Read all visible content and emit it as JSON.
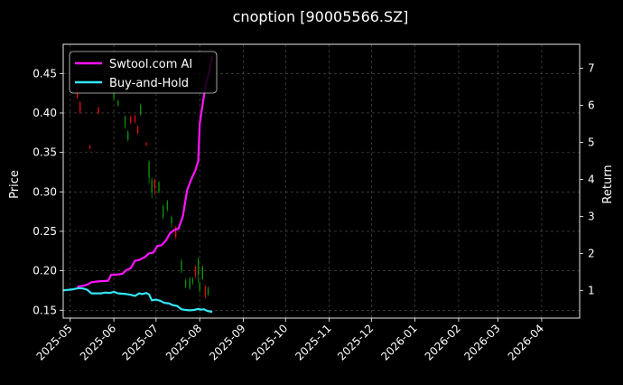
{
  "chart_data": {
    "type": "line",
    "title": "cnoption [90005566.SZ]",
    "xlabel": "",
    "ylabel_left": "Price",
    "ylabel_right": "Return",
    "xlim": [
      "2025-04-26",
      "2026-04-28"
    ],
    "ylim_left": [
      0.14,
      0.487
    ],
    "ylim_right": [
      0.25,
      7.65
    ],
    "x_tick_labels": [
      "2025-05",
      "2025-06",
      "2025-07",
      "2025-08",
      "2025-09",
      "2025-10",
      "2025-11",
      "2025-12",
      "2026-01",
      "2026-02",
      "2026-03",
      "2026-04"
    ],
    "y_left_ticks": [
      0.15,
      0.2,
      0.25,
      0.3,
      0.35,
      0.4,
      0.45
    ],
    "y_left_tick_labels": [
      "0.15",
      "0.20",
      "0.25",
      "0.30",
      "0.35",
      "0.40",
      "0.45"
    ],
    "y_right_ticks": [
      1,
      2,
      3,
      4,
      5,
      6,
      7
    ],
    "y_right_tick_labels": [
      "1",
      "2",
      "3",
      "4",
      "5",
      "6",
      "7"
    ],
    "grid": true,
    "legend_position": "top-left",
    "colors": {
      "background": "#000000",
      "strategy": "#ff14ff",
      "buy_and_hold": "#33e5f5",
      "candle_up": "#0f8f0f",
      "candle_down": "#e01010",
      "grid": "#555555",
      "text": "#ffffff"
    },
    "series": [
      {
        "name": "Swtool.com AI",
        "axis": "right",
        "points": [
          [
            "2025-05-06",
            1.1
          ],
          [
            "2025-05-09",
            1.12
          ],
          [
            "2025-05-13",
            1.15
          ],
          [
            "2025-05-16",
            1.22
          ],
          [
            "2025-05-20",
            1.24
          ],
          [
            "2025-05-23",
            1.25
          ],
          [
            "2025-05-28",
            1.26
          ],
          [
            "2025-05-30",
            1.42
          ],
          [
            "2025-06-04",
            1.43
          ],
          [
            "2025-06-07",
            1.45
          ],
          [
            "2025-06-10",
            1.55
          ],
          [
            "2025-06-13",
            1.6
          ],
          [
            "2025-06-16",
            1.8
          ],
          [
            "2025-06-19",
            1.82
          ],
          [
            "2025-06-23",
            1.9
          ],
          [
            "2025-06-26",
            2.0
          ],
          [
            "2025-06-29",
            2.02
          ],
          [
            "2025-07-02",
            2.2
          ],
          [
            "2025-07-05",
            2.22
          ],
          [
            "2025-07-08",
            2.35
          ],
          [
            "2025-07-11",
            2.55
          ],
          [
            "2025-07-14",
            2.63
          ],
          [
            "2025-07-17",
            2.67
          ],
          [
            "2025-07-20",
            3.0
          ],
          [
            "2025-07-23",
            3.7
          ],
          [
            "2025-07-26",
            4.0
          ],
          [
            "2025-07-29",
            4.25
          ],
          [
            "2025-07-31",
            4.5
          ],
          [
            "2025-08-01",
            5.5
          ],
          [
            "2025-08-03",
            6.0
          ],
          [
            "2025-08-05",
            6.5
          ],
          [
            "2025-08-07",
            6.8
          ],
          [
            "2025-08-10",
            7.32
          ]
        ]
      },
      {
        "name": "Buy-and-Hold",
        "axis": "right",
        "points": [
          [
            "2025-04-26",
            1.0
          ],
          [
            "2025-05-03",
            1.03
          ],
          [
            "2025-05-07",
            1.06
          ],
          [
            "2025-05-10",
            1.05
          ],
          [
            "2025-05-13",
            1.02
          ],
          [
            "2025-05-16",
            0.92
          ],
          [
            "2025-05-20",
            0.92
          ],
          [
            "2025-05-23",
            0.92
          ],
          [
            "2025-05-26",
            0.94
          ],
          [
            "2025-05-29",
            0.93
          ],
          [
            "2025-06-01",
            0.96
          ],
          [
            "2025-06-04",
            0.92
          ],
          [
            "2025-06-07",
            0.91
          ],
          [
            "2025-06-10",
            0.9
          ],
          [
            "2025-06-13",
            0.88
          ],
          [
            "2025-06-16",
            0.85
          ],
          [
            "2025-06-19",
            0.92
          ],
          [
            "2025-06-21",
            0.9
          ],
          [
            "2025-06-24",
            0.93
          ],
          [
            "2025-06-26",
            0.89
          ],
          [
            "2025-06-28",
            0.73
          ],
          [
            "2025-07-01",
            0.75
          ],
          [
            "2025-07-04",
            0.72
          ],
          [
            "2025-07-07",
            0.66
          ],
          [
            "2025-07-10",
            0.65
          ],
          [
            "2025-07-13",
            0.6
          ],
          [
            "2025-07-16",
            0.58
          ],
          [
            "2025-07-19",
            0.49
          ],
          [
            "2025-07-22",
            0.47
          ],
          [
            "2025-07-25",
            0.46
          ],
          [
            "2025-07-28",
            0.47
          ],
          [
            "2025-07-31",
            0.5
          ],
          [
            "2025-08-02",
            0.48
          ],
          [
            "2025-08-04",
            0.49
          ],
          [
            "2025-08-06",
            0.45
          ],
          [
            "2025-08-08",
            0.43
          ],
          [
            "2025-08-10",
            0.42
          ]
        ]
      }
    ],
    "candles": [
      {
        "date": "2025-05-06",
        "open": 0.43,
        "close": 0.42,
        "high": 0.432,
        "low": 0.418
      },
      {
        "date": "2025-05-08",
        "open": 0.413,
        "close": 0.402,
        "high": 0.415,
        "low": 0.399
      },
      {
        "date": "2025-05-15",
        "open": 0.358,
        "close": 0.355,
        "high": 0.36,
        "low": 0.354
      },
      {
        "date": "2025-05-21",
        "open": 0.406,
        "close": 0.4,
        "high": 0.408,
        "low": 0.398
      },
      {
        "date": "2025-06-01",
        "open": 0.418,
        "close": 0.428,
        "high": 0.43,
        "low": 0.415
      },
      {
        "date": "2025-06-04",
        "open": 0.41,
        "close": 0.415,
        "high": 0.417,
        "low": 0.408
      },
      {
        "date": "2025-06-09",
        "open": 0.382,
        "close": 0.395,
        "high": 0.397,
        "low": 0.38
      },
      {
        "date": "2025-06-11",
        "open": 0.366,
        "close": 0.376,
        "high": 0.378,
        "low": 0.364
      },
      {
        "date": "2025-06-13",
        "open": 0.395,
        "close": 0.388,
        "high": 0.397,
        "low": 0.386
      },
      {
        "date": "2025-06-16",
        "open": 0.396,
        "close": 0.389,
        "high": 0.398,
        "low": 0.387
      },
      {
        "date": "2025-06-18",
        "open": 0.382,
        "close": 0.375,
        "high": 0.384,
        "low": 0.373
      },
      {
        "date": "2025-06-20",
        "open": 0.398,
        "close": 0.41,
        "high": 0.412,
        "low": 0.396
      },
      {
        "date": "2025-06-24",
        "open": 0.362,
        "close": 0.359,
        "high": 0.363,
        "low": 0.358
      },
      {
        "date": "2025-06-26",
        "open": 0.318,
        "close": 0.338,
        "high": 0.34,
        "low": 0.31
      },
      {
        "date": "2025-06-28",
        "open": 0.3,
        "close": 0.315,
        "high": 0.318,
        "low": 0.292
      },
      {
        "date": "2025-06-30",
        "open": 0.315,
        "close": 0.305,
        "high": 0.317,
        "low": 0.296
      },
      {
        "date": "2025-07-03",
        "open": 0.3,
        "close": 0.312,
        "high": 0.314,
        "low": 0.298
      },
      {
        "date": "2025-07-06",
        "open": 0.268,
        "close": 0.282,
        "high": 0.284,
        "low": 0.265
      },
      {
        "date": "2025-07-09",
        "open": 0.278,
        "close": 0.288,
        "high": 0.29,
        "low": 0.275
      },
      {
        "date": "2025-07-12",
        "open": 0.26,
        "close": 0.268,
        "high": 0.27,
        "low": 0.255
      },
      {
        "date": "2025-07-15",
        "open": 0.255,
        "close": 0.243,
        "high": 0.257,
        "low": 0.24
      },
      {
        "date": "2025-07-19",
        "open": 0.2,
        "close": 0.212,
        "high": 0.215,
        "low": 0.197
      },
      {
        "date": "2025-07-22",
        "open": 0.18,
        "close": 0.188,
        "high": 0.19,
        "low": 0.178
      },
      {
        "date": "2025-07-25",
        "open": 0.178,
        "close": 0.19,
        "high": 0.192,
        "low": 0.176
      },
      {
        "date": "2025-07-27",
        "open": 0.185,
        "close": 0.19,
        "high": 0.192,
        "low": 0.182
      },
      {
        "date": "2025-07-29",
        "open": 0.205,
        "close": 0.195,
        "high": 0.207,
        "low": 0.19
      },
      {
        "date": "2025-07-31",
        "open": 0.195,
        "close": 0.215,
        "high": 0.217,
        "low": 0.185
      },
      {
        "date": "2025-08-01",
        "open": 0.175,
        "close": 0.185,
        "high": 0.187,
        "low": 0.172
      },
      {
        "date": "2025-08-03",
        "open": 0.19,
        "close": 0.205,
        "high": 0.207,
        "low": 0.188
      },
      {
        "date": "2025-08-05",
        "open": 0.18,
        "close": 0.168,
        "high": 0.182,
        "low": 0.165
      },
      {
        "date": "2025-08-07",
        "open": 0.17,
        "close": 0.178,
        "high": 0.18,
        "low": 0.168
      }
    ]
  }
}
